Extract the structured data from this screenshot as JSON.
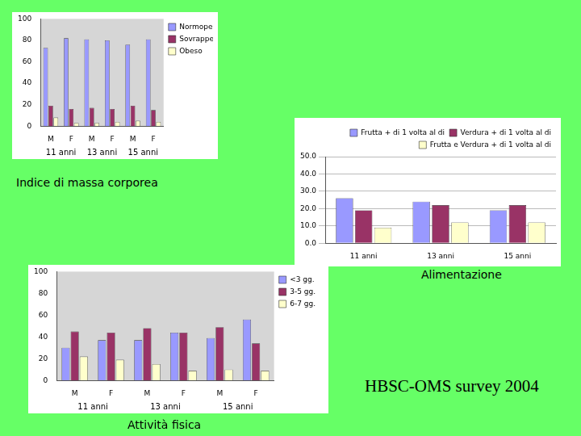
{
  "chart_data": [
    {
      "type": "bar",
      "title": "Indice di massa corporea",
      "categories": [
        "M",
        "F",
        "M",
        "F",
        "M",
        "F"
      ],
      "group_labels": [
        "11 anni",
        "13 anni",
        "15 anni"
      ],
      "series": [
        {
          "name": "Normopeso",
          "color": "#9999ff",
          "values": [
            73,
            82,
            81,
            80,
            76,
            81
          ]
        },
        {
          "name": "Sovrappeso",
          "color": "#993366",
          "values": [
            19,
            16,
            17,
            16,
            19,
            15
          ]
        },
        {
          "name": "Obeso",
          "color": "#ffffcc",
          "values": [
            8,
            3,
            3,
            4,
            5,
            4
          ]
        }
      ],
      "ylim": [
        0,
        100
      ],
      "yticks": [
        0,
        20,
        40,
        60,
        80,
        100
      ],
      "grid": false,
      "legend": "right"
    },
    {
      "type": "bar",
      "title": "Alimentazione",
      "categories": [
        "11 anni",
        "13 anni",
        "15 anni"
      ],
      "series": [
        {
          "name": "Frutta + di 1 volta al di",
          "color": "#9999ff",
          "values": [
            26,
            24,
            19
          ]
        },
        {
          "name": "Verdura + di 1 volta al di",
          "color": "#993366",
          "values": [
            19,
            22,
            22
          ]
        },
        {
          "name": "Frutta e Verdura + di 1 volta al di",
          "color": "#ffffcc",
          "values": [
            9,
            12,
            12
          ]
        }
      ],
      "ylim": [
        0,
        50
      ],
      "yticks": [
        {
          "value": 0,
          "label": "0.0"
        },
        {
          "value": 10,
          "label": "10.0"
        },
        {
          "value": 20,
          "label": "20.0"
        },
        {
          "value": 30,
          "label": "30.0"
        },
        {
          "value": 40,
          "label": "40.0"
        },
        {
          "value": 50,
          "label": "50.0"
        }
      ],
      "grid": true,
      "legend": "top"
    },
    {
      "type": "bar",
      "title": "Attività fisica",
      "categories": [
        "M",
        "F",
        "M",
        "F",
        "M",
        "F"
      ],
      "group_labels": [
        "11 anni",
        "13 anni",
        "15 anni"
      ],
      "series": [
        {
          "name": "<3 gg.",
          "color": "#9999ff",
          "values": [
            30,
            37,
            37,
            44,
            39,
            56
          ]
        },
        {
          "name": "3-5 gg.",
          "color": "#993366",
          "values": [
            45,
            44,
            48,
            44,
            49,
            34
          ]
        },
        {
          "name": "6-7 gg.",
          "color": "#ffffcc",
          "values": [
            22,
            19,
            15,
            9,
            10,
            9
          ]
        }
      ],
      "ylim": [
        0,
        100
      ],
      "yticks": [
        0,
        20,
        40,
        60,
        80,
        100
      ],
      "grid": false,
      "legend": "right"
    }
  ],
  "footer": "HBSC-OMS survey 2004"
}
